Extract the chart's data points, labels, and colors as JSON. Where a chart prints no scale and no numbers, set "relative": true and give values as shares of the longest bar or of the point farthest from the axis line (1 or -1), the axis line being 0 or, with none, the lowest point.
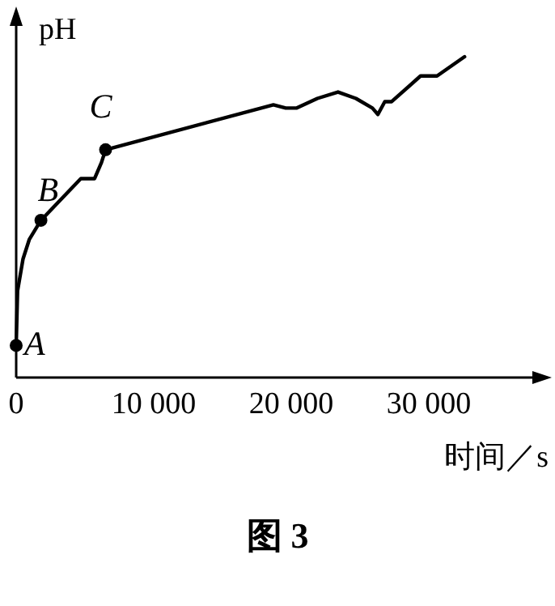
{
  "chart_data": {
    "type": "line",
    "relative": true,
    "title": "图 3",
    "xlabel": "时间／s",
    "ylabel": "pH",
    "xlim": [
      0,
      38000
    ],
    "xticks": [
      0,
      {
        "value": 10000,
        "label": "10 000"
      },
      {
        "value": 20000,
        "label": "20 000"
      },
      {
        "value": 30000,
        "label": "30 000"
      }
    ],
    "series": [
      {
        "color": "#000000",
        "marker": "none",
        "x": [
          0,
          100,
          500,
          950,
          1800,
          4700,
          5700,
          6200,
          6500,
          18700,
          19600,
          20400,
          21900,
          23400,
          24700,
          25900,
          26300,
          26800,
          27300,
          29400,
          30600,
          32600
        ],
        "values": [
          0.1,
          0.27,
          0.37,
          0.43,
          0.49,
          0.62,
          0.62,
          0.67,
          0.71,
          0.85,
          0.84,
          0.84,
          0.87,
          0.89,
          0.87,
          0.84,
          0.82,
          0.86,
          0.86,
          0.94,
          0.94,
          1.0
        ]
      },
      {
        "type": "scatter",
        "color": "#000000",
        "marker": "circle",
        "x": [
          0,
          1800,
          6500
        ],
        "values": [
          0.1,
          0.49,
          0.71
        ]
      }
    ],
    "annotations": [
      {
        "text": "A",
        "x": 0,
        "y": 0.1
      },
      {
        "text": "B",
        "x": 1800,
        "y": 0.49
      },
      {
        "text": "C",
        "x": 6500,
        "y": 0.71
      }
    ]
  }
}
